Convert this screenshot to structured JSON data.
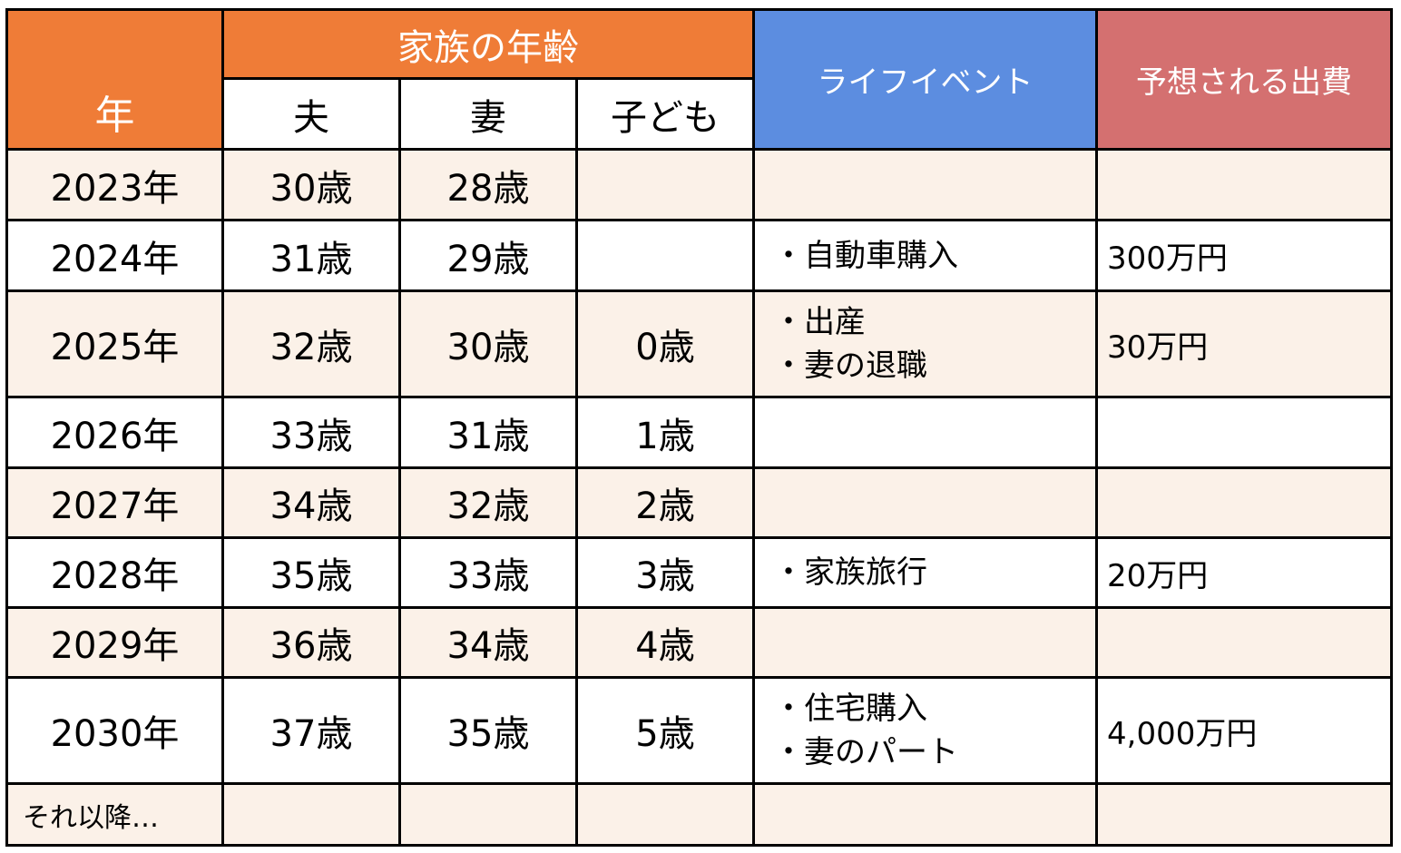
{
  "header": {
    "year": "年",
    "family_ages": "家族の年齢",
    "husband": "夫",
    "wife": "妻",
    "child": "子ども",
    "life_event": "ライフイベント",
    "expected_cost": "予想される出費"
  },
  "rows": [
    {
      "year": "2023年",
      "husband": "30歳",
      "wife": "28歳",
      "child": "",
      "events": [],
      "cost": ""
    },
    {
      "year": "2024年",
      "husband": "31歳",
      "wife": "29歳",
      "child": "",
      "events": [
        "・自動車購入"
      ],
      "cost": "300万円"
    },
    {
      "year": "2025年",
      "husband": "32歳",
      "wife": "30歳",
      "child": "0歳",
      "events": [
        "・出産",
        "・妻の退職"
      ],
      "cost": "30万円"
    },
    {
      "year": "2026年",
      "husband": "33歳",
      "wife": "31歳",
      "child": "1歳",
      "events": [],
      "cost": ""
    },
    {
      "year": "2027年",
      "husband": "34歳",
      "wife": "32歳",
      "child": "2歳",
      "events": [],
      "cost": ""
    },
    {
      "year": "2028年",
      "husband": "35歳",
      "wife": "33歳",
      "child": "3歳",
      "events": [
        "・家族旅行"
      ],
      "cost": "20万円"
    },
    {
      "year": "2029年",
      "husband": "36歳",
      "wife": "34歳",
      "child": "4歳",
      "events": [],
      "cost": ""
    },
    {
      "year": "2030年",
      "husband": "37歳",
      "wife": "35歳",
      "child": "5歳",
      "events": [
        "・住宅購入",
        "・妻のパート"
      ],
      "cost": "4,000万円"
    }
  ],
  "later": "それ以降…",
  "colors": {
    "header_orange": "#EF7C37",
    "header_blue": "#5C8DE0",
    "header_red": "#D47070",
    "row_tint": "#FBF1E8"
  }
}
